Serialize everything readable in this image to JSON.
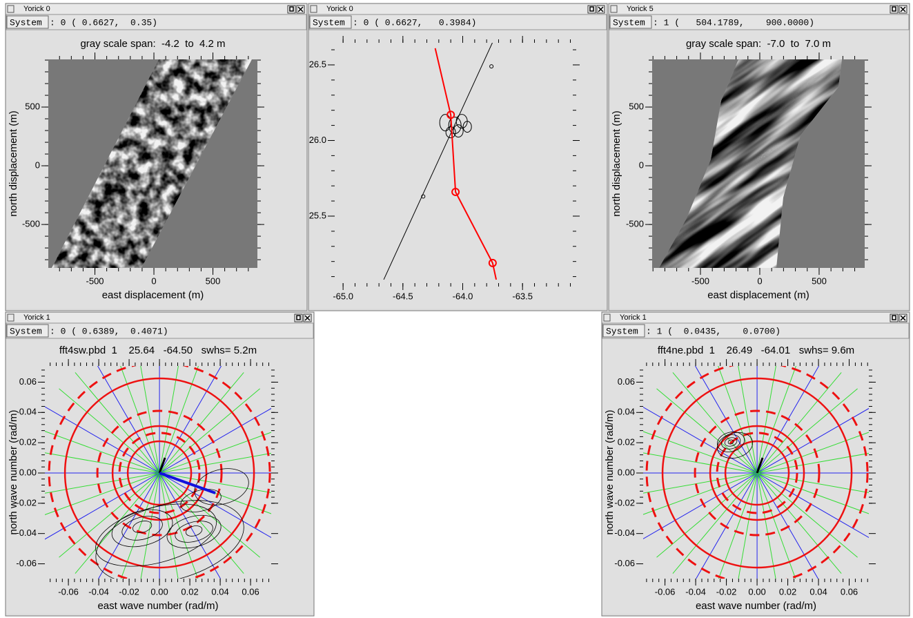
{
  "windows": [
    {
      "title": "Yorick 0",
      "system": "System",
      "status": ": 0 ( 0.6627,  0.35)",
      "plot": {
        "type": "image",
        "title": "gray scale span:  -4.2  to  4.2 m",
        "xlabel": "east displacement (m)",
        "ylabel": "north displacement (m)",
        "xlim": [
          -895,
          877
        ],
        "ylim": [
          -870,
          906
        ],
        "xticks": [
          -500,
          0,
          500
        ],
        "yticks": [
          -500,
          0,
          500
        ]
      }
    },
    {
      "title": "Yorick 0",
      "system": "System",
      "status": ": 0 ( 0.6627,   0.3984)",
      "plot": {
        "type": "line",
        "xlim": [
          -65.07,
          -63.08
        ],
        "ylim": [
          25.057,
          26.646
        ],
        "xticks": [
          {
            "value": -65,
            "label": "-65.0"
          },
          -64.5,
          {
            "value": -64,
            "label": "-64.0"
          },
          -63.5
        ],
        "yticks": [
          26.5,
          {
            "value": 26,
            "label": "26.0"
          },
          25.5
        ],
        "series": [
          {
            "color": "#000000",
            "x": [
              -64.66,
              -63.75
            ],
            "y": [
              25.08,
              26.65
            ],
            "points": {
              "x": [
                -64.33,
                -63.76
              ],
              "y": [
                25.63,
                26.49
              ]
            }
          },
          {
            "color": "#ff0000",
            "x": [
              -64.23,
              -64.1,
              -64.06,
              -63.75,
              -63.72
            ],
            "y": [
              26.61,
              26.17,
              25.66,
              25.19,
              25.08
            ],
            "points": {
              "x": [
                -64.1,
                -64.06,
                -63.75
              ],
              "y": [
                26.17,
                25.66,
                25.19
              ]
            }
          }
        ]
      }
    },
    {
      "title": "Yorick 5",
      "system": "System",
      "status": ": 1 (   504.1789,    900.0000)",
      "plot": {
        "type": "image",
        "title": "gray scale span:  -7.0  to  7.0 m",
        "xlabel": "east displacement (m)",
        "ylabel": "north displacement (m)",
        "xlim": [
          -907,
          884
        ],
        "ylim": [
          -870,
          906
        ],
        "xticks": [
          -500,
          0,
          500
        ],
        "yticks": [
          -500,
          0,
          500
        ]
      }
    },
    {
      "title": "Yorick 1",
      "system": "System",
      "status": ": 0 ( 0.6389,  0.4071)",
      "plot": {
        "type": "polar",
        "title": "fft4sw.pbd  1    25.64   -64.50   swhs= 5.2m",
        "xlabel": "east wave number (rad/m)",
        "ylabel": "north wave number (rad/m)",
        "xlim": [
          -0.0755,
          0.0736
        ],
        "ylim": [
          -0.0698,
          0.0707
        ],
        "xticks": [
          -0.06,
          -0.04,
          -0.02,
          {
            "value": 0,
            "label": "0.00"
          },
          0.02,
          0.04,
          0.06
        ],
        "yticks": [
          0.06,
          0.04,
          0.02,
          {
            "value": 0,
            "label": "0.00"
          },
          -0.02,
          -0.04,
          -0.06
        ]
      }
    },
    {
      "title": "Yorick 1",
      "system": "System",
      "status": ": 1 (  0.0435,    0.0700)",
      "plot": {
        "type": "polar",
        "title": "fft4ne.pbd  1    26.49   -64.01   swhs= 9.6m",
        "xlabel": "east wave number (rad/m)",
        "ylabel": "north wave number (rad/m)",
        "xlim": [
          -0.0742,
          0.0728
        ],
        "ylim": [
          -0.0698,
          0.0707
        ],
        "xticks": [
          -0.06,
          -0.04,
          -0.02,
          {
            "value": 0,
            "label": "0.00"
          },
          0.02,
          0.04,
          0.06
        ],
        "yticks": [
          0.06,
          0.04,
          0.02,
          {
            "value": 0,
            "label": "0.00"
          },
          -0.02,
          -0.04,
          -0.06
        ]
      }
    }
  ]
}
